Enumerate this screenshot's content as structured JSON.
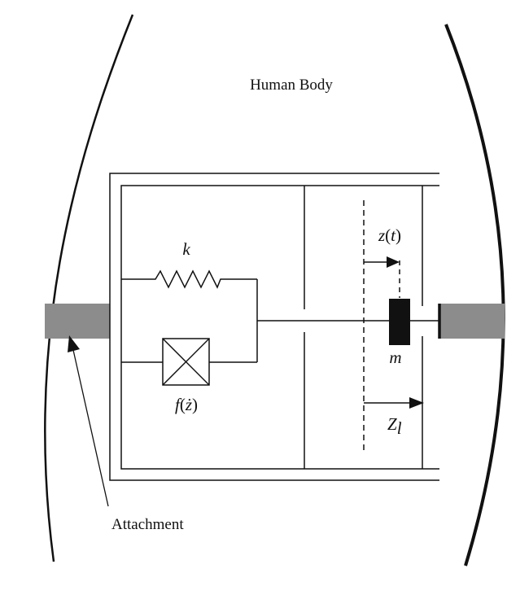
{
  "diagram": {
    "title": "Human Body",
    "attachment_label": "Attachment",
    "spring_label": "k",
    "damper_label": {
      "func": "f",
      "open": "(",
      "var": "ż",
      "close": ")"
    },
    "displacement_label": {
      "var": "z",
      "open": "(",
      "arg": "t",
      "close": ")"
    },
    "mass_label": "m",
    "limit_label": {
      "main": "Z",
      "sub": "l"
    }
  },
  "colors": {
    "line": "#111111",
    "attachment_fill": "#8c8c8c",
    "mass_fill": "#111111"
  }
}
